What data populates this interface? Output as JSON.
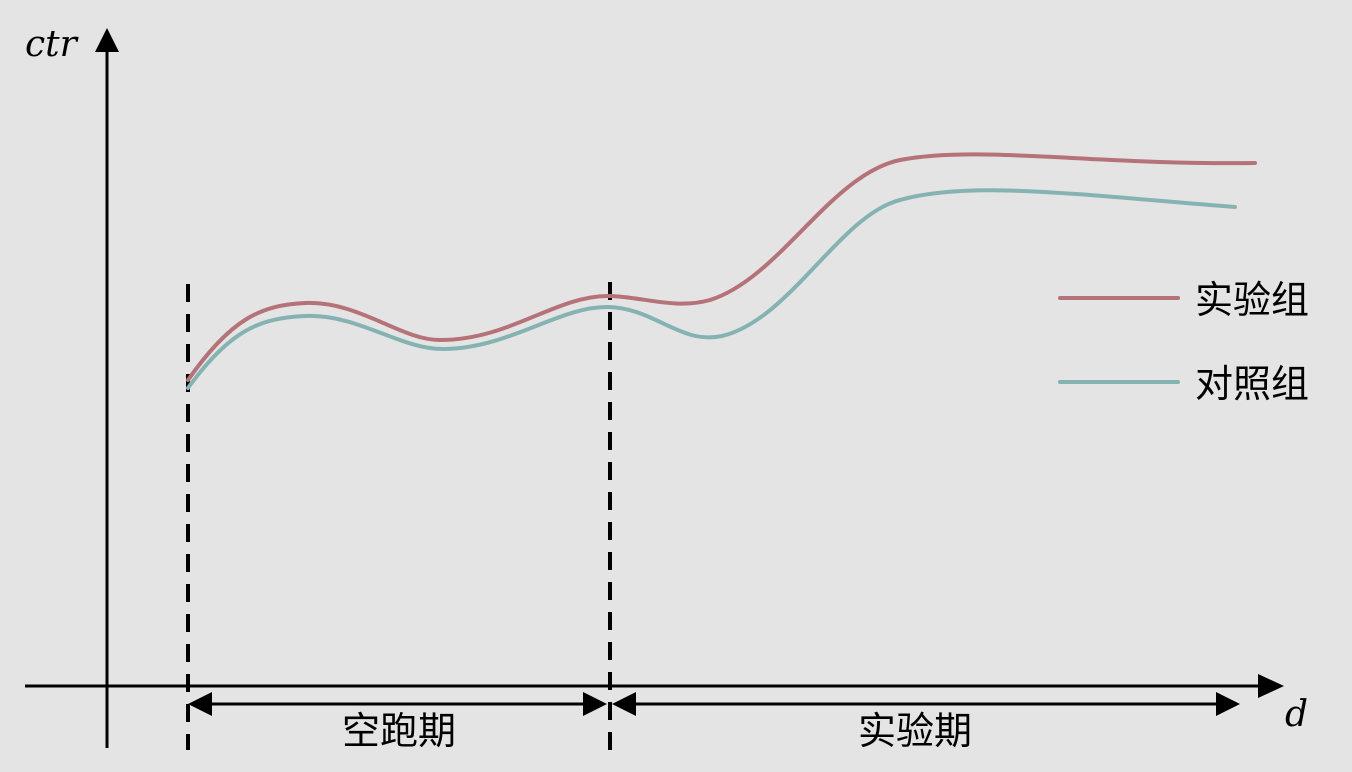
{
  "diagram": {
    "y_axis_label": "ctr",
    "x_axis_label": "d",
    "periods": [
      {
        "label": "空跑期"
      },
      {
        "label": "实验期"
      }
    ],
    "legend": [
      {
        "label": "实验组",
        "color": "#b57278"
      },
      {
        "label": "对照组",
        "color": "#84b3b2"
      }
    ],
    "colors": {
      "background": "#e4e4e4",
      "axis": "#000000"
    }
  }
}
